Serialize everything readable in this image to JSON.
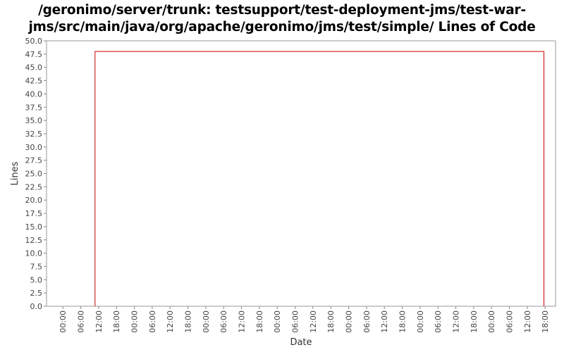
{
  "chart_data": {
    "type": "line",
    "title_lines": [
      "/geronimo/server/trunk: testsupport/test-deployment-jms/test-war-",
      "jms/src/main/java/org/apache/geronimo/jms/test/simple/ Lines of Code"
    ],
    "xlabel": "Date",
    "ylabel": "Lines",
    "ylim": [
      0,
      50
    ],
    "y_ticks": [
      0.0,
      2.5,
      5.0,
      7.5,
      10.0,
      12.5,
      15.0,
      17.5,
      20.0,
      22.5,
      25.0,
      27.5,
      30.0,
      32.5,
      35.0,
      37.5,
      40.0,
      42.5,
      45.0,
      47.5,
      50.0
    ],
    "y_tick_labels": [
      "0.0",
      "2.5",
      "5.0",
      "7.5",
      "10.0",
      "12.5",
      "15.0",
      "17.5",
      "20.0",
      "22.5",
      "25.0",
      "27.5",
      "30.0",
      "32.5",
      "35.0",
      "37.5",
      "40.0",
      "42.5",
      "45.0",
      "47.5",
      "50.0"
    ],
    "x_tick_labels": [
      "00:00",
      "06:00",
      "12:00",
      "18:00",
      "00:00",
      "06:00",
      "12:00",
      "18:00",
      "00:00",
      "06:00",
      "12:00",
      "18:00",
      "00:00",
      "06:00",
      "12:00",
      "18:00",
      "00:00",
      "06:00",
      "12:00",
      "18:00",
      "00:00",
      "06:00",
      "12:00",
      "18:00",
      "00:00",
      "06:00",
      "12:00",
      "18:00"
    ],
    "x_tick_hours": [
      0,
      6,
      12,
      18,
      24,
      30,
      36,
      42,
      48,
      54,
      60,
      66,
      72,
      78,
      84,
      90,
      96,
      102,
      108,
      114,
      120,
      126,
      132,
      138,
      144,
      150,
      156,
      162
    ],
    "x_range_hours": [
      -5.5,
      165.5
    ],
    "series": [
      {
        "color": "#cc0000",
        "x_hours": [
          10.8,
          10.8,
          161.6,
          161.6
        ],
        "y": [
          0,
          48,
          48,
          0
        ]
      }
    ],
    "grid": false,
    "legend": "none"
  }
}
